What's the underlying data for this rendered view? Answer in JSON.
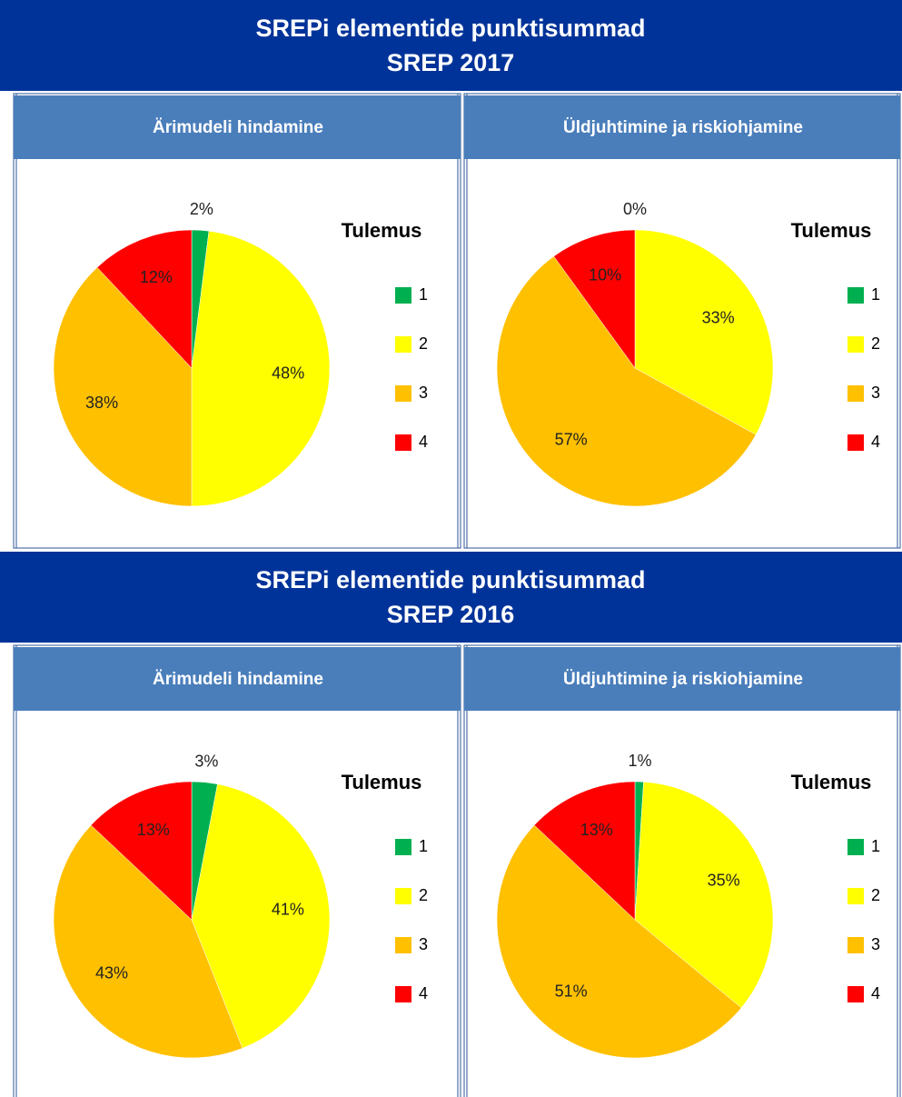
{
  "sections": [
    {
      "title": [
        "SREPi elementide punktisummad",
        "SREP 2017"
      ]
    },
    {
      "title": [
        "SREPi elementide punktisummad",
        "SREP 2016"
      ]
    }
  ],
  "chart_data": [
    {
      "type": "pie",
      "title": "Ärimudeli hindamine",
      "legend_title": "Tulemus",
      "categories": [
        "1",
        "2",
        "3",
        "4"
      ],
      "values": [
        2,
        48,
        38,
        12
      ],
      "value_labels": [
        "2%",
        "48%",
        "38%",
        "12%"
      ],
      "colors": [
        "#00b050",
        "#ffff00",
        "#ffc000",
        "#ff0000"
      ]
    },
    {
      "type": "pie",
      "title": "Üldjuhtimine ja riskiohjamine",
      "legend_title": "Tulemus",
      "categories": [
        "1",
        "2",
        "3",
        "4"
      ],
      "values": [
        0,
        33,
        57,
        10
      ],
      "value_labels": [
        "0%",
        "33%",
        "57%",
        "10%"
      ],
      "colors": [
        "#00b050",
        "#ffff00",
        "#ffc000",
        "#ff0000"
      ]
    },
    {
      "type": "pie",
      "title": "Ärimudeli hindamine",
      "legend_title": "Tulemus",
      "categories": [
        "1",
        "2",
        "3",
        "4"
      ],
      "values": [
        3,
        41,
        43,
        13
      ],
      "value_labels": [
        "3%",
        "41%",
        "43%",
        "13%"
      ],
      "colors": [
        "#00b050",
        "#ffff00",
        "#ffc000",
        "#ff0000"
      ]
    },
    {
      "type": "pie",
      "title": "Üldjuhtimine ja riskiohjamine",
      "legend_title": "Tulemus",
      "categories": [
        "1",
        "2",
        "3",
        "4"
      ],
      "values": [
        1,
        35,
        51,
        13
      ],
      "value_labels": [
        "1%",
        "35%",
        "51%",
        "13%"
      ],
      "colors": [
        "#00b050",
        "#ffff00",
        "#ffc000",
        "#ff0000"
      ]
    }
  ]
}
